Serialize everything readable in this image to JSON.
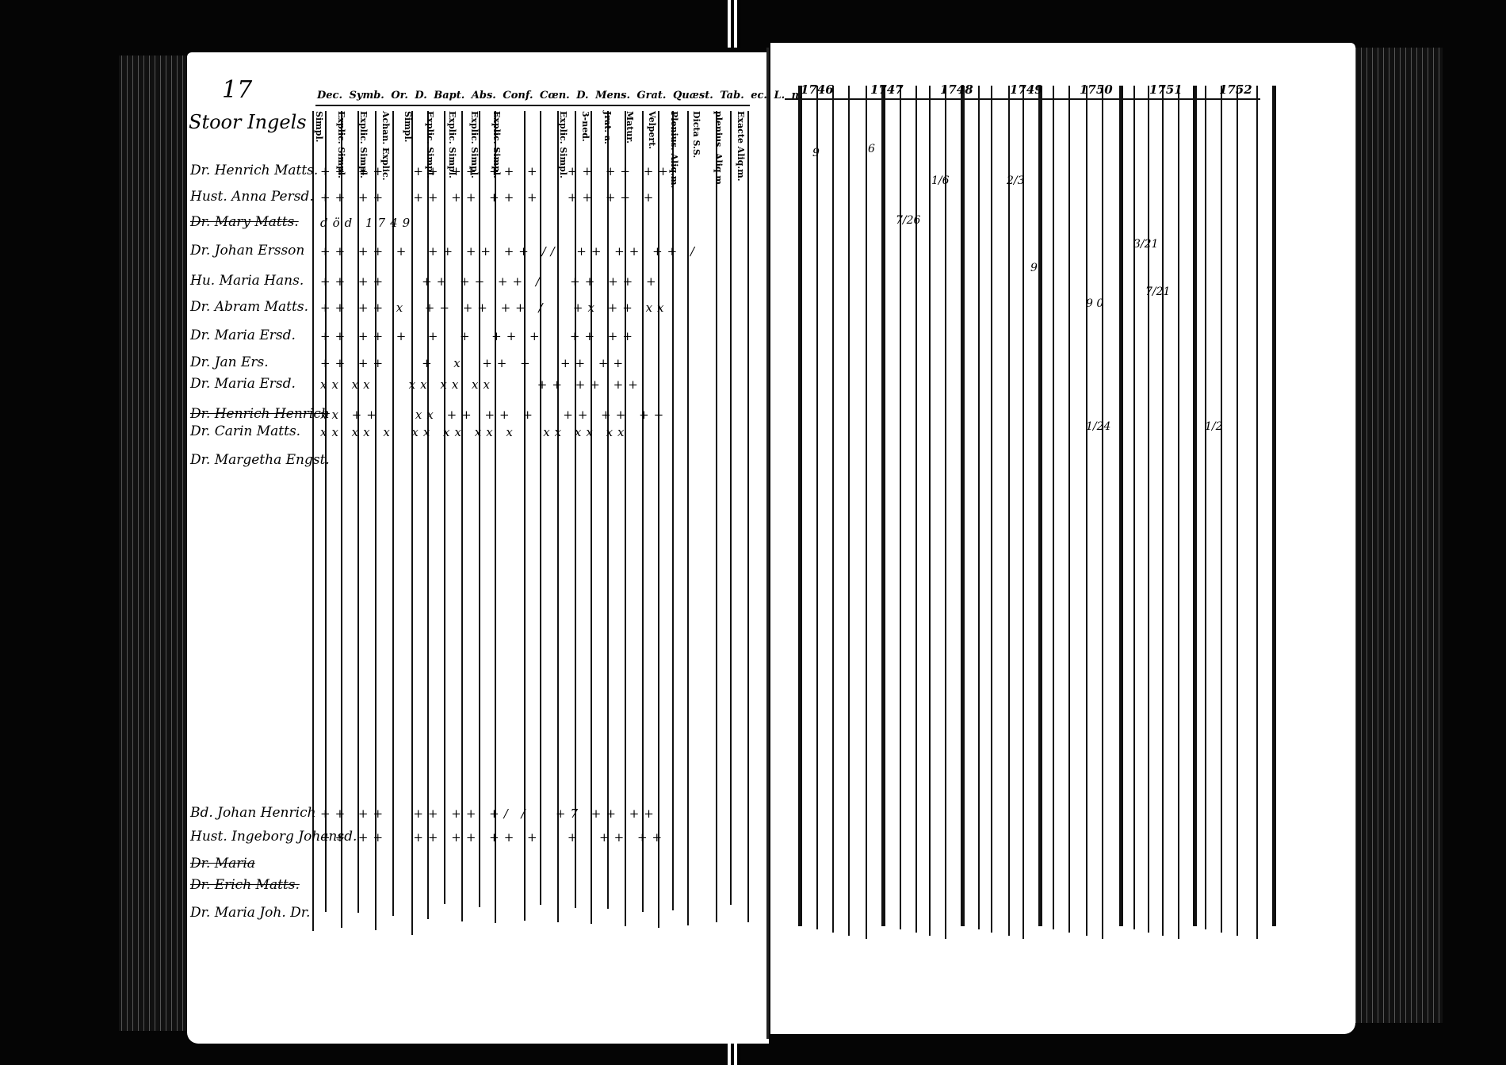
{
  "page_number": "17",
  "village": "Stoor Ingels",
  "header_columns": "Dec. Symb. Or. D. Bapt. Abs. Conf. Cœn. D. Mens. Grat. Quæst. Tab. ec. L. n.",
  "sub_columns": [
    "Simpl.",
    "Explic. Simpl.",
    "Explic. Simpl.",
    "Achan. Explic.",
    "Simpl.",
    "Explic. Simpl.",
    "Explic. Simpl.",
    "Explic. Simpl.",
    "Explic. Simpl.",
    "",
    "",
    "Explic. Simpl.",
    "3-ned.",
    "Jrat. a.",
    "Matur.",
    "Velpert.",
    "Plenius. Aliq.m.",
    "Dicta S.S.",
    "plenius. Aliq.m.",
    "Exacte Aliq.m."
  ],
  "years": [
    "1746",
    "1747",
    "1748",
    "1749",
    "1750",
    "1751",
    "1752"
  ],
  "entries": [
    {
      "name": "Dr. Henrich Matts.",
      "marks": "++ ++   ++ ++ ++ +   ++ ++ ++",
      "struck": false
    },
    {
      "name": "Hust. Anna Persd.",
      "marks": "++ ++   ++ ++ ++ +   ++ ++ +",
      "struck": false
    },
    {
      "name": "Dr. Mary Matts.",
      "marks": "död 1749",
      "struck": true
    },
    {
      "name": "Dr. Johan Ersson",
      "marks": "++ ++ +  ++ ++ ++ //  ++ ++ ++ /",
      "struck": false
    },
    {
      "name": "Hu. Maria Hans.",
      "marks": "++ ++    ++ ++ ++ /   ++ ++ +",
      "struck": false
    },
    {
      "name": "Dr. Abram Matts.",
      "marks": "++ ++ x  ++ ++ ++ /   +x ++ xx",
      "struck": false
    },
    {
      "name": "Dr. Maria Ersd.",
      "marks": "++ ++ +  +  +  ++ +   ++ ++",
      "struck": false
    },
    {
      "name": "Dr. Jan Ers.",
      "marks": "++ ++    +  x  ++ +   ++ ++",
      "struck": false
    },
    {
      "name": "Dr. Maria Ersd.",
      "marks": "xx xx    xx xx xx     ++ ++ ++",
      "struck": false
    },
    {
      "name": "Dr. Henrich Henrich",
      "marks": "xx ++    xx ++ ++ +   ++ ++ ++",
      "struck": true
    },
    {
      "name": "Dr. Carin Matts.",
      "marks": "xx xx x  xx xx xx x   xx xx xx",
      "struck": false
    },
    {
      "name": "Dr. Margetha Engst.",
      "marks": "",
      "struck": false
    }
  ],
  "lower_entries": [
    {
      "name": "Bd. Johan Henrich",
      "marks": "++ ++   ++ ++ +/ /   +7 ++ ++",
      "struck": false
    },
    {
      "name": "Hust. Ingeborg Johansd.",
      "marks": "++ ++   ++ ++ ++ +   +  ++ ++",
      "struck": false
    },
    {
      "name": "Dr. Maria",
      "marks": "",
      "struck": true
    },
    {
      "name": "Dr. Erich Matts.",
      "marks": "",
      "struck": true
    },
    {
      "name": "Dr. Maria Joh. Dr.",
      "marks": "",
      "struck": false
    }
  ],
  "right_notes": [
    "9",
    "6",
    "7/26",
    "1/6",
    "2/3",
    "9",
    "9 0",
    "3/21",
    "7/21",
    "1/24",
    "1/2"
  ]
}
